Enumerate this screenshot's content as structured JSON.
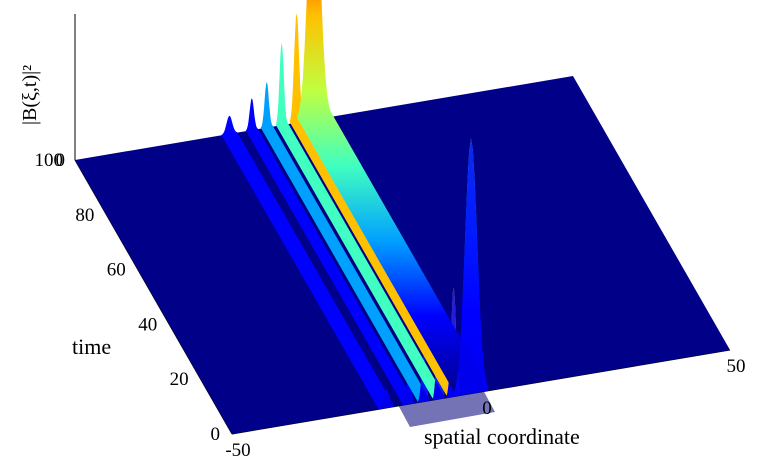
{
  "chart_data": {
    "type": "surface",
    "zlabel": "|B(ξ,t)|²",
    "xlabel": "spatial coordinate",
    "ylabel": "time",
    "xlim": [
      -50,
      50
    ],
    "ylim": [
      0,
      100
    ],
    "zlim": [
      0,
      0.4
    ],
    "xticks": [
      "-50",
      "0",
      "50"
    ],
    "yticks": [
      "0",
      "20",
      "40",
      "60",
      "80",
      "100"
    ],
    "zticks": [
      "0",
      "0.2",
      "0.4"
    ],
    "colormap": [
      "#00008f",
      "#0000ff",
      "#00a0ff",
      "#40ffc0",
      "#c0ff40",
      "#ffc000",
      "#ff2000",
      "#8f0000"
    ],
    "surface_color": "#000088",
    "ridges": [
      {
        "xi": -2,
        "peak": 0.28,
        "width": 1.7
      },
      {
        "xi": -5.5,
        "peak": 0.12,
        "width": 0.7
      },
      {
        "xi": -8.5,
        "peak": 0.09,
        "width": 0.6
      },
      {
        "xi": -11.5,
        "peak": 0.05,
        "width": 0.6
      },
      {
        "xi": -14.5,
        "peak": 0.035,
        "width": 0.6
      },
      {
        "xi": -19,
        "peak": 0.02,
        "width": 0.8
      }
    ]
  }
}
